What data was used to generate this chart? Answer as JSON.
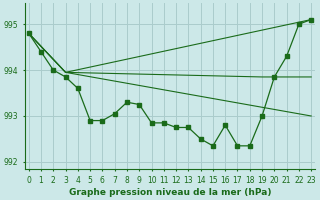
{
  "bg_color": "#cce8e8",
  "grid_color": "#aacccc",
  "line_color": "#1a6b1a",
  "main_series": {
    "x": [
      0,
      1,
      2,
      3,
      4,
      5,
      6,
      7,
      8,
      9,
      10,
      11,
      12,
      13,
      14,
      15,
      16,
      17,
      18,
      19,
      20,
      21,
      22,
      23
    ],
    "y": [
      994.8,
      994.4,
      994.0,
      993.85,
      993.6,
      992.9,
      992.9,
      993.05,
      993.3,
      993.25,
      992.85,
      992.85,
      992.75,
      992.75,
      992.5,
      992.35,
      992.8,
      992.35,
      992.35,
      993.0,
      993.85,
      994.3,
      995.0,
      995.1
    ]
  },
  "extra_lines": [
    {
      "x": [
        0,
        3,
        23
      ],
      "y": [
        994.8,
        993.95,
        995.1
      ]
    },
    {
      "x": [
        0,
        3,
        19,
        23
      ],
      "y": [
        994.8,
        993.95,
        993.85,
        993.85
      ]
    },
    {
      "x": [
        0,
        3,
        23
      ],
      "y": [
        994.8,
        993.95,
        993.0
      ]
    }
  ],
  "xlim": [
    -0.3,
    23.3
  ],
  "ylim": [
    991.85,
    995.45
  ],
  "yticks": [
    992,
    993,
    994,
    995
  ],
  "xticks": [
    0,
    1,
    2,
    3,
    4,
    5,
    6,
    7,
    8,
    9,
    10,
    11,
    12,
    13,
    14,
    15,
    16,
    17,
    18,
    19,
    20,
    21,
    22,
    23
  ],
  "xlabel": "Graphe pression niveau de la mer (hPa)",
  "label_fontsize": 6.5,
  "tick_fontsize": 5.5
}
